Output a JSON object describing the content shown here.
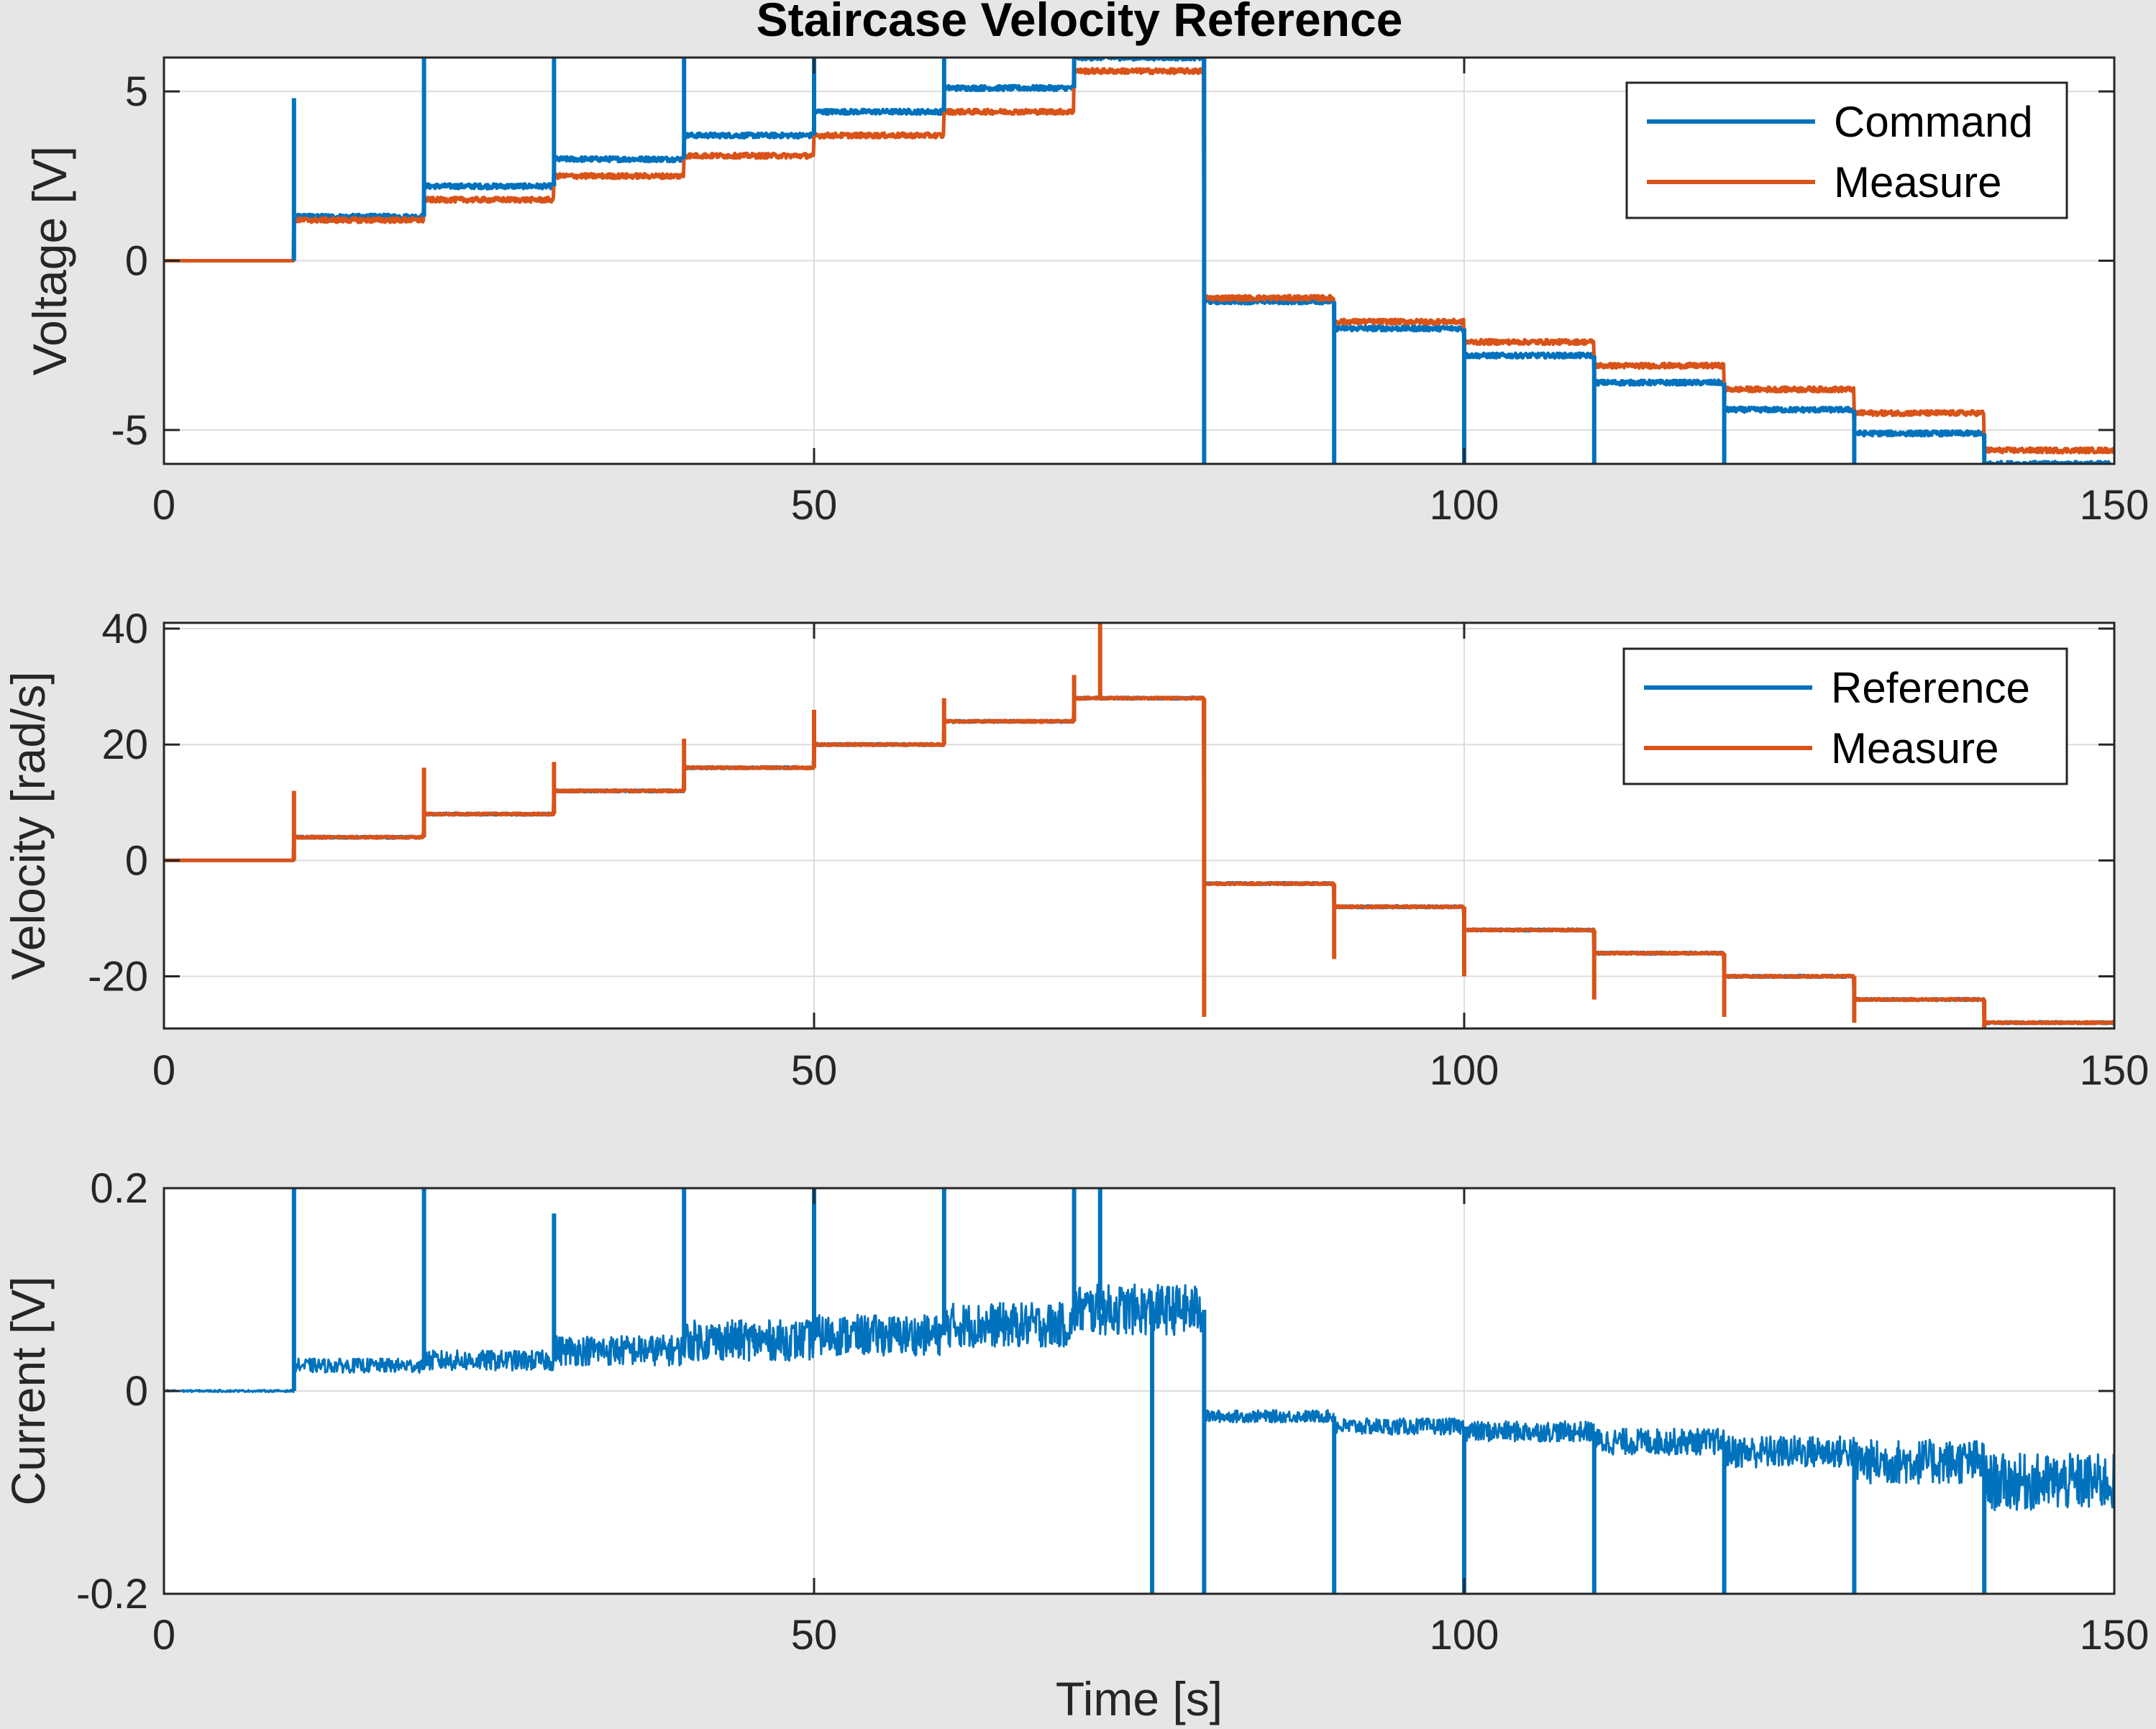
{
  "figure": {
    "title": "Staircase Velocity Reference"
  },
  "chart_data": [
    {
      "type": "line",
      "xlabel": "",
      "ylabel": "Voltage [V]",
      "xlim": [
        0,
        150
      ],
      "ylim": [
        -6,
        6
      ],
      "xticks": [
        0,
        50,
        100,
        150
      ],
      "xtick_labels": [
        "0",
        "50",
        "100",
        "150"
      ],
      "yticks": [
        -5,
        0,
        5
      ],
      "ytick_labels": [
        "-5",
        "0",
        "5"
      ],
      "grid": true,
      "legend": "top-right",
      "series": [
        {
          "name": "Command",
          "color": "#0072BD",
          "steps": {
            "t": [
              0,
              10,
              20,
              30,
              40,
              50,
              60,
              70,
              80,
              90,
              100,
              110,
              120,
              130,
              140
            ],
            "v": [
              0,
              1.3,
              2.2,
              3.0,
              3.7,
              4.4,
              5.1,
              6.0,
              -1.2,
              -2.0,
              -2.8,
              -3.6,
              -4.4,
              -5.1,
              -6.0
            ]
          }
        },
        {
          "name": "Measure",
          "color": "#D95319",
          "steps": {
            "t": [
              0,
              10,
              20,
              30,
              40,
              50,
              60,
              70,
              80,
              90,
              100,
              110,
              120,
              130,
              140
            ],
            "v": [
              0,
              1.2,
              1.8,
              2.5,
              3.1,
              3.7,
              4.4,
              5.6,
              -1.1,
              -1.8,
              -2.4,
              -3.1,
              -3.8,
              -4.5,
              -5.6
            ]
          }
        }
      ]
    },
    {
      "type": "line",
      "xlabel": "",
      "ylabel": "Velocity [rad/s]",
      "xlim": [
        0,
        150
      ],
      "ylim": [
        -29,
        41
      ],
      "xticks": [
        0,
        50,
        100,
        150
      ],
      "xtick_labels": [
        "0",
        "50",
        "100",
        "150"
      ],
      "yticks": [
        -20,
        0,
        20,
        40
      ],
      "ytick_labels": [
        "-20",
        "0",
        "20",
        "40"
      ],
      "grid": true,
      "legend": "top-right",
      "series": [
        {
          "name": "Reference",
          "color": "#0072BD",
          "steps": {
            "t": [
              0,
              10,
              20,
              30,
              40,
              50,
              60,
              70,
              80,
              90,
              100,
              110,
              120,
              130,
              140
            ],
            "v": [
              0,
              4,
              8,
              12,
              16,
              20,
              24,
              28,
              -4,
              -8,
              -12,
              -16,
              -20,
              -24,
              -28
            ]
          }
        },
        {
          "name": "Measure",
          "color": "#D95319",
          "steps": {
            "t": [
              0,
              10,
              20,
              30,
              40,
              50,
              60,
              70,
              80,
              90,
              100,
              110,
              120,
              130,
              140
            ],
            "v": [
              0,
              4,
              8,
              12,
              16,
              20,
              24,
              28,
              -4,
              -8,
              -12,
              -16,
              -20,
              -24,
              -28
            ]
          },
          "spikes": {
            "t": [
              10,
              20,
              30,
              40,
              50,
              60,
              70,
              72,
              80,
              90,
              100,
              110,
              120,
              130,
              140
            ],
            "v": [
              12,
              16,
              17,
              21,
              26,
              28,
              32,
              41,
              -27,
              -17,
              -20,
              -24,
              -27,
              -28,
              -29
            ]
          }
        }
      ]
    },
    {
      "type": "line",
      "xlabel": "Time [s]",
      "ylabel": "Current [V]",
      "xlim": [
        0,
        150
      ],
      "ylim": [
        -0.2,
        0.2
      ],
      "xticks": [
        0,
        50,
        100,
        150
      ],
      "xtick_labels": [
        "0",
        "50",
        "100",
        "150"
      ],
      "yticks": [
        -0.2,
        0,
        0.2
      ],
      "ytick_labels": [
        "-0.2",
        "0",
        "0.2"
      ],
      "grid": true,
      "legend": "none",
      "series": [
        {
          "name": "",
          "color": "#0072BD",
          "steps": {
            "t": [
              0,
              10,
              20,
              30,
              40,
              50,
              60,
              70,
              80,
              90,
              100,
              110,
              120,
              130,
              140
            ],
            "v": [
              0,
              0.025,
              0.03,
              0.04,
              0.05,
              0.055,
              0.065,
              0.08,
              -0.025,
              -0.035,
              -0.04,
              -0.05,
              -0.06,
              -0.07,
              -0.09
            ]
          },
          "noise_amplitude": {
            "t": [
              0,
              10,
              20,
              30,
              40,
              50,
              60,
              70,
              80,
              90,
              100,
              110,
              120,
              130,
              140
            ],
            "v": [
              0.001,
              0.007,
              0.01,
              0.015,
              0.02,
              0.02,
              0.022,
              0.025,
              0.006,
              0.008,
              0.01,
              0.013,
              0.016,
              0.022,
              0.028
            ]
          },
          "spikes": {
            "t": [
              10,
              20,
              30,
              40,
              50,
              60,
              70,
              72,
              76,
              80,
              90,
              100,
              110,
              120,
              130,
              140
            ],
            "v": [
              0.2,
              0.2,
              0.175,
              0.2,
              0.2,
              0.2,
              0.2,
              0.2,
              -0.2,
              -0.2,
              -0.2,
              -0.2,
              -0.2,
              -0.2,
              -0.2,
              -0.2
            ]
          }
        }
      ]
    }
  ]
}
